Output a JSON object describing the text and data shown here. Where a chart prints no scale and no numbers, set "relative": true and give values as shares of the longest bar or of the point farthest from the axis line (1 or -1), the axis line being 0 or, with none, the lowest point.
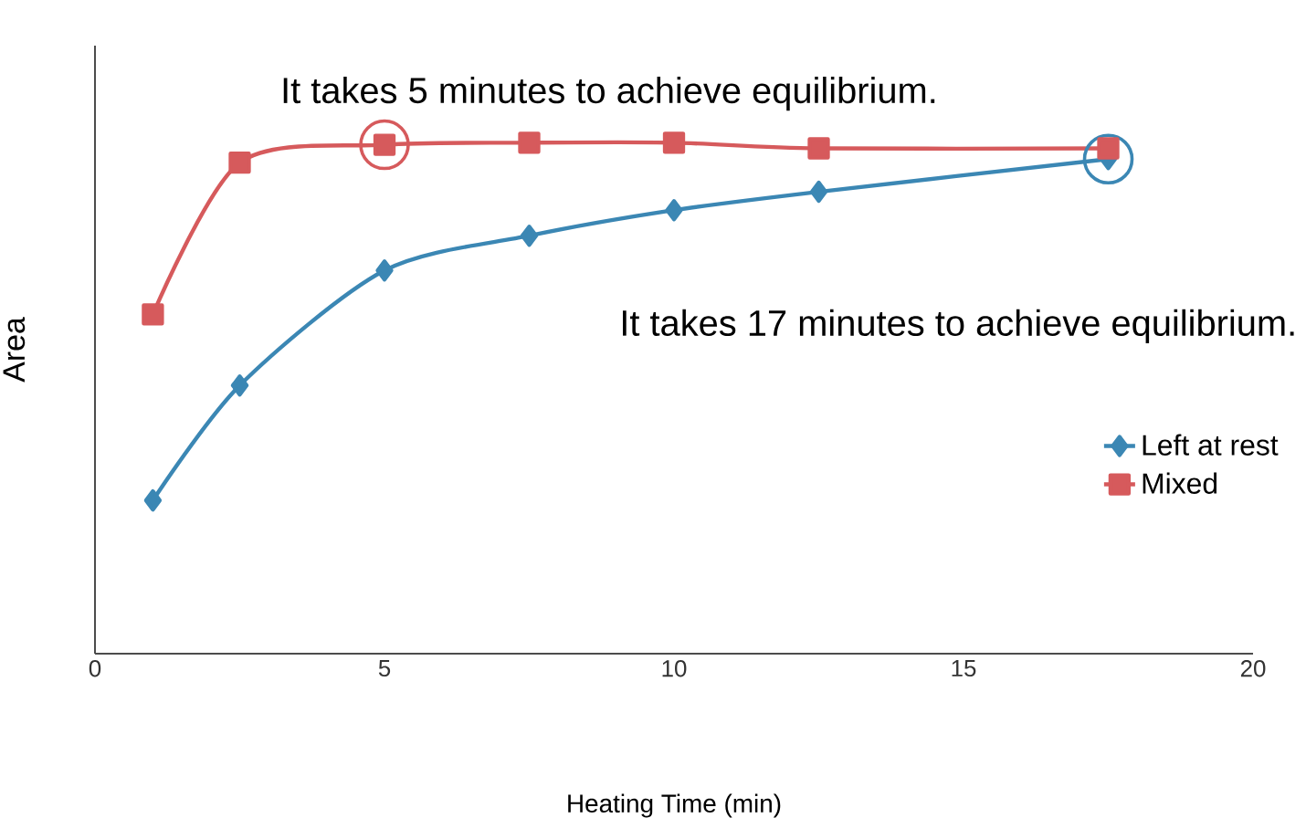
{
  "chart_data": {
    "type": "line",
    "relative": true,
    "xlabel": "Heating Time (min)",
    "ylabel": "Area",
    "xlim": [
      0,
      20
    ],
    "xticks": [
      0,
      5,
      10,
      15,
      20
    ],
    "legend": "right",
    "grid": false,
    "series": [
      {
        "name": "Left at rest",
        "color": "#3b87b4",
        "marker": "diamond",
        "x": [
          1,
          2.5,
          5,
          7.5,
          10,
          12.5,
          17.5
        ],
        "values": [
          0.3,
          0.525,
          0.75,
          0.818,
          0.868,
          0.904,
          0.968
        ]
      },
      {
        "name": "Mixed",
        "color": "#d65a5c",
        "marker": "square",
        "x": [
          1,
          2.5,
          5,
          7.5,
          10,
          12.5,
          17.5
        ],
        "values": [
          0.664,
          0.961,
          0.996,
          1.0,
          1.0,
          0.989,
          0.989
        ]
      }
    ],
    "annotations": [
      {
        "text": "It takes 5 minutes to achieve equilibrium.",
        "x": 5,
        "y": 0.996
      },
      "It takes 17 minutes to achieve equilibrium."
    ]
  }
}
